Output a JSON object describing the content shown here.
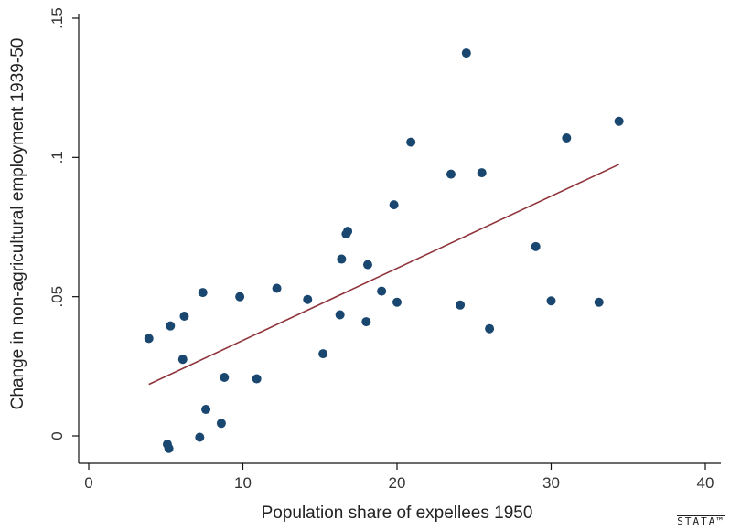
{
  "chart_data": {
    "type": "scatter",
    "xlabel": "Population share of expellees 1950",
    "ylabel": "Change in non-agricultural employment 1939-50",
    "xlim": [
      0,
      40
    ],
    "ylim": [
      -0.01,
      0.155
    ],
    "x_ticks": [
      0,
      10,
      20,
      30,
      40
    ],
    "x_tick_labels": [
      "0",
      "10",
      "20",
      "30",
      "40"
    ],
    "y_ticks": [
      0,
      0.05,
      0.1,
      0.15
    ],
    "y_tick_labels": [
      "0",
      ".05",
      ".1",
      ".15"
    ],
    "grid": false,
    "marker_color": "#1a476f",
    "fit_color": "#90353b",
    "points": [
      {
        "x": 3.9,
        "y": 0.035
      },
      {
        "x": 5.1,
        "y": -0.003
      },
      {
        "x": 5.2,
        "y": -0.0045
      },
      {
        "x": 5.3,
        "y": 0.0395
      },
      {
        "x": 6.1,
        "y": 0.0275
      },
      {
        "x": 6.2,
        "y": 0.043
      },
      {
        "x": 7.2,
        "y": -0.0005
      },
      {
        "x": 7.4,
        "y": 0.0515
      },
      {
        "x": 7.6,
        "y": 0.0095
      },
      {
        "x": 8.6,
        "y": 0.0045
      },
      {
        "x": 8.8,
        "y": 0.021
      },
      {
        "x": 9.8,
        "y": 0.05
      },
      {
        "x": 10.9,
        "y": 0.0205
      },
      {
        "x": 12.2,
        "y": 0.053
      },
      {
        "x": 14.2,
        "y": 0.049
      },
      {
        "x": 15.2,
        "y": 0.0295
      },
      {
        "x": 16.3,
        "y": 0.0435
      },
      {
        "x": 16.4,
        "y": 0.0635
      },
      {
        "x": 16.7,
        "y": 0.0725
      },
      {
        "x": 16.8,
        "y": 0.0735
      },
      {
        "x": 18.0,
        "y": 0.041
      },
      {
        "x": 18.1,
        "y": 0.0615
      },
      {
        "x": 19.0,
        "y": 0.052
      },
      {
        "x": 19.8,
        "y": 0.083
      },
      {
        "x": 20.0,
        "y": 0.048
      },
      {
        "x": 20.9,
        "y": 0.1055
      },
      {
        "x": 23.5,
        "y": 0.094
      },
      {
        "x": 24.1,
        "y": 0.047
      },
      {
        "x": 24.5,
        "y": 0.1375
      },
      {
        "x": 25.5,
        "y": 0.0945
      },
      {
        "x": 26.0,
        "y": 0.0385
      },
      {
        "x": 29.0,
        "y": 0.068
      },
      {
        "x": 30.0,
        "y": 0.0485
      },
      {
        "x": 31.0,
        "y": 0.107
      },
      {
        "x": 33.1,
        "y": 0.048
      },
      {
        "x": 34.4,
        "y": 0.113
      }
    ],
    "fit_line": {
      "x": [
        3.9,
        34.4
      ],
      "y": [
        0.0185,
        0.0975
      ]
    }
  },
  "watermark": "STATA™"
}
